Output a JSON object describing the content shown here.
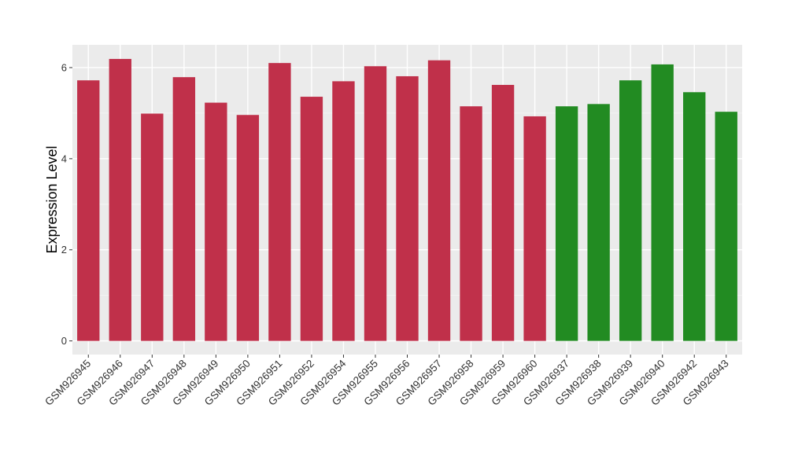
{
  "chart_data": {
    "type": "bar",
    "title": "",
    "xlabel": "",
    "ylabel": "Expression Level",
    "ylim": [
      -0.3,
      6.5
    ],
    "yticks": [
      0,
      2,
      4,
      6
    ],
    "grid": true,
    "legend": "none",
    "colors": {
      "panel_background": "#ebebeb",
      "grid_major": "#ffffff",
      "grid_minor": "#f5f5f5",
      "group_1": "#c0304a",
      "group_2": "#228b22"
    },
    "categories": [
      "GSM926945",
      "GSM926946",
      "GSM926947",
      "GSM926948",
      "GSM926949",
      "GSM926950",
      "GSM926951",
      "GSM926952",
      "GSM926954",
      "GSM926955",
      "GSM926956",
      "GSM926957",
      "GSM926958",
      "GSM926959",
      "GSM926960",
      "GSM926937",
      "GSM926938",
      "GSM926939",
      "GSM926940",
      "GSM926942",
      "GSM926943"
    ],
    "values": [
      5.72,
      6.19,
      4.99,
      5.79,
      5.23,
      4.96,
      6.1,
      5.36,
      5.7,
      6.03,
      5.81,
      6.16,
      5.15,
      5.62,
      4.93,
      5.15,
      5.2,
      5.72,
      6.07,
      5.46,
      5.03
    ],
    "bar_groups": [
      "group_1",
      "group_1",
      "group_1",
      "group_1",
      "group_1",
      "group_1",
      "group_1",
      "group_1",
      "group_1",
      "group_1",
      "group_1",
      "group_1",
      "group_1",
      "group_1",
      "group_1",
      "group_2",
      "group_2",
      "group_2",
      "group_2",
      "group_2",
      "group_2"
    ]
  }
}
